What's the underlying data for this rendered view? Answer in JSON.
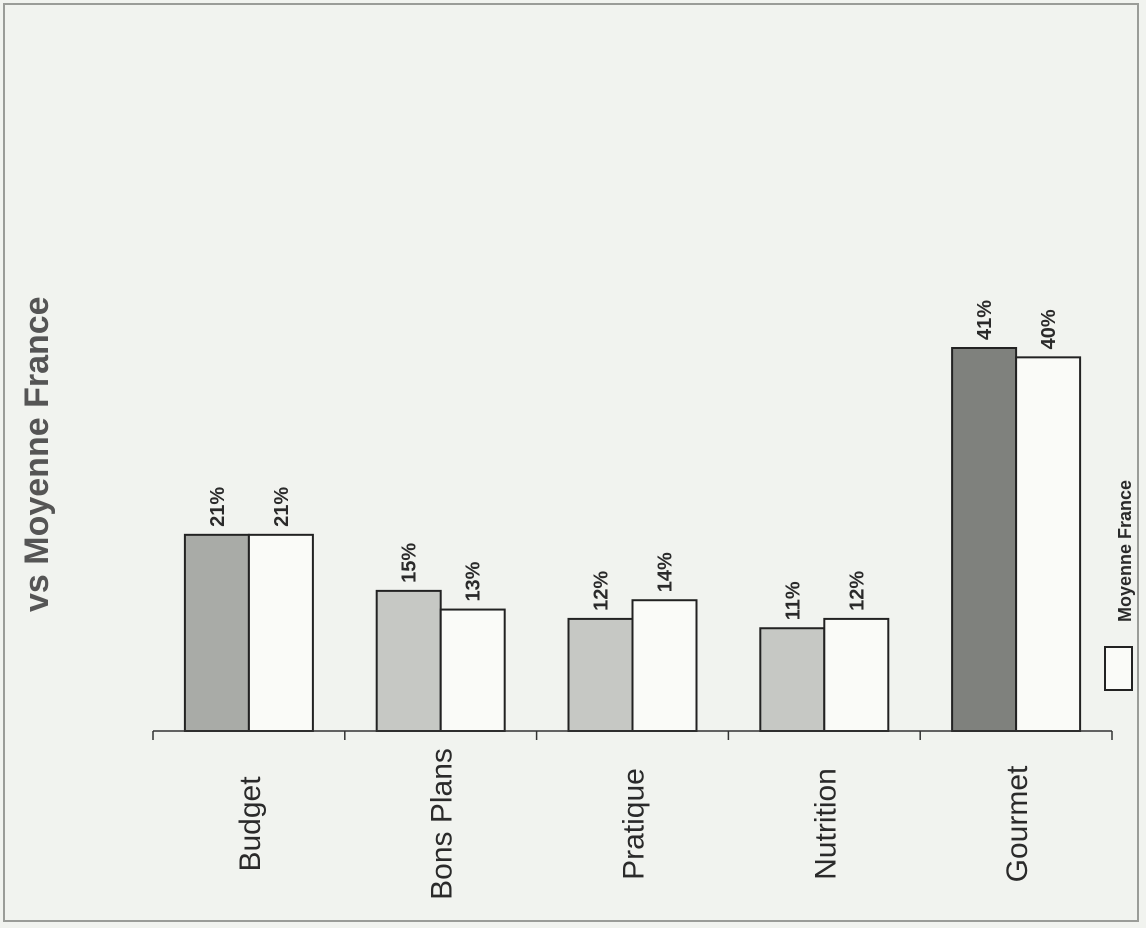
{
  "chart_data": {
    "type": "bar",
    "title": "vs Moyenne France",
    "categories": [
      "Budget",
      "Bons Plans",
      "Pratique",
      "Nutrition",
      "Gourmet"
    ],
    "series": [
      {
        "values": [
          21,
          15,
          12,
          11,
          41
        ],
        "labels": [
          "21%",
          "15%",
          "12%",
          "11%",
          "41%"
        ],
        "colors": [
          "#a9aba7",
          "#c6c8c4",
          "#c6c8c4",
          "#c6c8c4",
          "#7f817d"
        ]
      },
      {
        "name": "Moyenne France",
        "values": [
          21,
          13,
          14,
          12,
          40
        ],
        "labels": [
          "21%",
          "13%",
          "14%",
          "12%",
          "40%"
        ],
        "color": "#fafbf8"
      }
    ],
    "ylim": [
      0,
      41
    ],
    "grid": false,
    "legend_position": "right"
  },
  "colors": {
    "outline": "#222222",
    "axis": "#333333"
  }
}
